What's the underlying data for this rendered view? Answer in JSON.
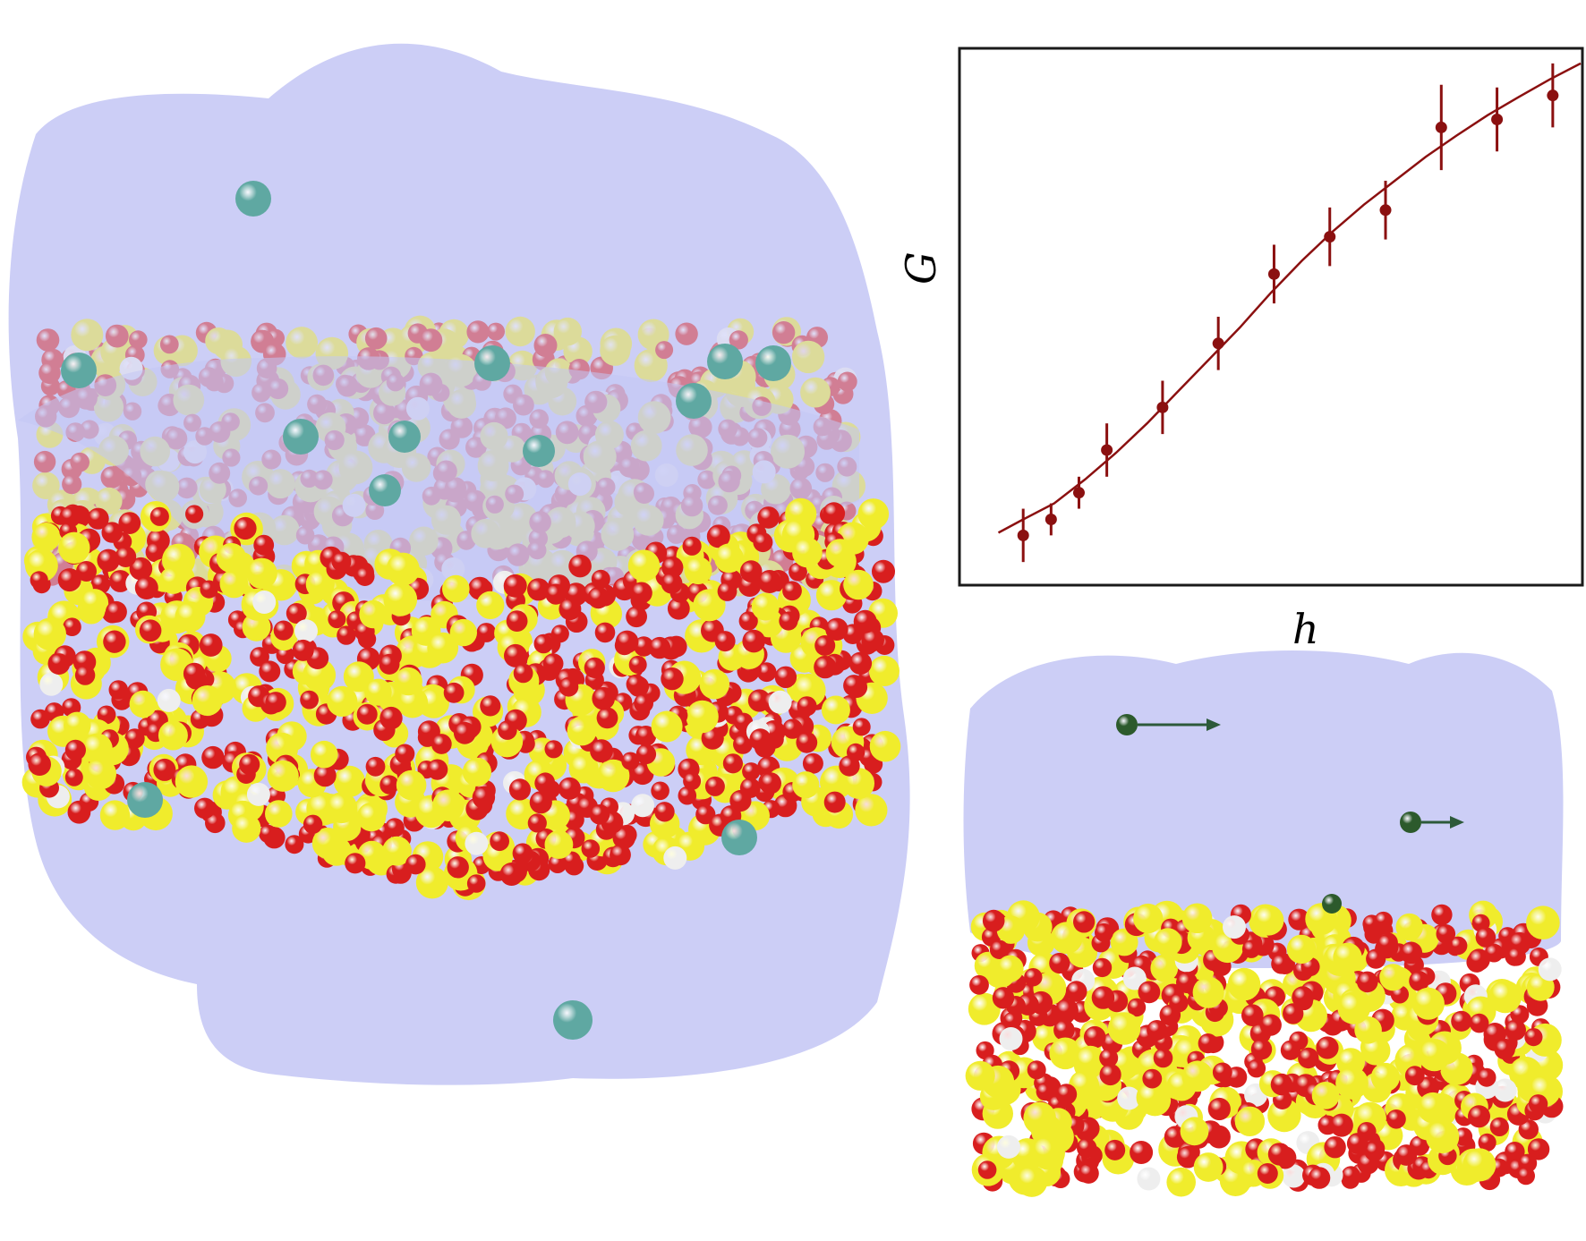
{
  "colors": {
    "water": "#c3c6f4",
    "silicon": "#f0ec2c",
    "oxygen": "#d81e1e",
    "hydrogen": "#eeeeee",
    "ion": "#5fa8a2",
    "probe_ion": "#2c5a2c",
    "arrow": "#2d5a3a",
    "series": "#8b1010"
  },
  "chart_data": {
    "type": "scatter",
    "xlabel": "h",
    "ylabel": "G",
    "x_ticks_shown": false,
    "y_ticks_shown": false,
    "grid": false,
    "legend": "none",
    "xlim": [
      0,
      1
    ],
    "ylim": [
      0,
      1
    ],
    "series": [
      {
        "marker": "point-with-errorbar",
        "x": [
          0.1,
          0.145,
          0.19,
          0.235,
          0.325,
          0.415,
          0.505,
          0.595,
          0.685,
          0.775,
          0.865,
          0.955
        ],
        "y": [
          0.09,
          0.12,
          0.17,
          0.25,
          0.33,
          0.45,
          0.58,
          0.65,
          0.7,
          0.855,
          0.87,
          0.915
        ],
        "err": [
          0.05,
          0.03,
          0.03,
          0.05,
          0.05,
          0.05,
          0.055,
          0.055,
          0.055,
          0.08,
          0.06,
          0.06
        ]
      }
    ],
    "fit_curve": {
      "style": "line",
      "x": [
        0.06,
        0.1,
        0.15,
        0.2,
        0.25,
        0.3,
        0.35,
        0.4,
        0.45,
        0.5,
        0.55,
        0.6,
        0.65,
        0.7,
        0.75,
        0.8,
        0.85,
        0.9,
        0.95,
        1.0
      ],
      "y": [
        0.095,
        0.12,
        0.15,
        0.195,
        0.245,
        0.3,
        0.36,
        0.42,
        0.48,
        0.545,
        0.605,
        0.66,
        0.71,
        0.755,
        0.8,
        0.84,
        0.878,
        0.912,
        0.945,
        0.975
      ]
    }
  }
}
